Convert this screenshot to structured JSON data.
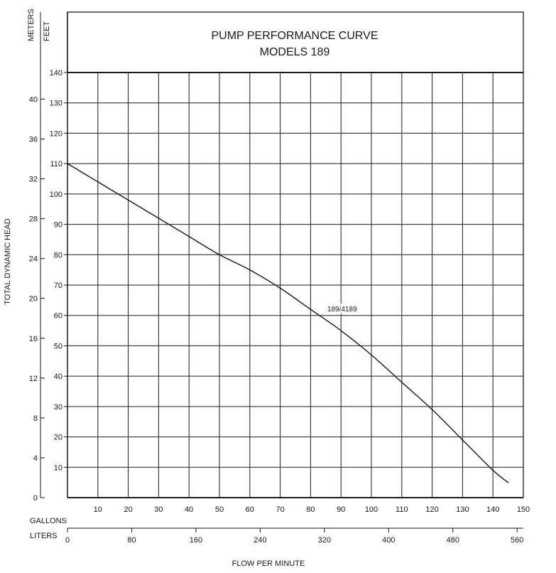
{
  "chart_data": {
    "type": "line",
    "title": "PUMP PERFORMANCE CURVE",
    "subtitle": "MODELS 189",
    "ylabel": "TOTAL DYNAMIC HEAD",
    "xlabel": "FLOW PER MINUTE",
    "y_units_left": "METERS",
    "y_units_right": "FEET",
    "x_units_top": "GALLONS",
    "x_units_bottom": "LITERS",
    "xlim": [
      0,
      150
    ],
    "ylim": [
      0,
      140
    ],
    "grid": true,
    "gallons_ticks": [
      10,
      20,
      30,
      40,
      50,
      60,
      70,
      80,
      90,
      100,
      110,
      120,
      130,
      140,
      150
    ],
    "feet_ticks": [
      10,
      20,
      30,
      40,
      50,
      60,
      70,
      80,
      90,
      100,
      110,
      120,
      130,
      140
    ],
    "meters_ticks": [
      0,
      4,
      8,
      12,
      16,
      20,
      24,
      28,
      32,
      36,
      40
    ],
    "liters_ticks": [
      0,
      80,
      160,
      240,
      320,
      400,
      480,
      560
    ],
    "series": [
      {
        "name": "189/4189",
        "x": [
          0,
          10,
          20,
          30,
          40,
          50,
          60,
          70,
          80,
          90,
          100,
          110,
          120,
          130,
          140,
          145
        ],
        "y": [
          110,
          104,
          98,
          92,
          86,
          80,
          75,
          69,
          62,
          55,
          47,
          38,
          29,
          19,
          9,
          5
        ]
      }
    ],
    "line_color": "#1a1a1a",
    "grid_color": "#1a1a1a"
  }
}
